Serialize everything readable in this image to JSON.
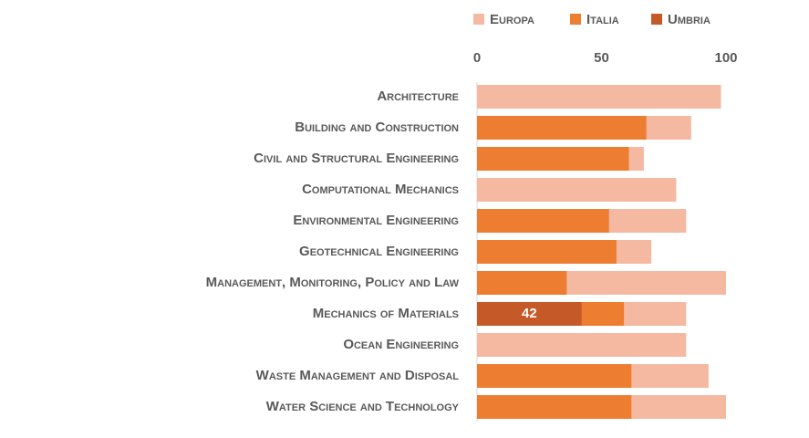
{
  "chart_data": {
    "type": "overlapping-bar",
    "categories": [
      "Architecture",
      "Building and Construction",
      "Civil and Structural Engineering",
      "Computational Mechanics",
      "Environmental Engineering",
      "Geotechnical Engineering",
      "Management, Monitoring, Policy and Law",
      "Mechanics of Materials",
      "Ocean Engineering",
      "Waste Management and Disposal",
      "Water Science and Technology"
    ],
    "series": [
      {
        "name": "Europa",
        "color": "#f4b9a0",
        "values": [
          98,
          86,
          67,
          80,
          84,
          70,
          100,
          84,
          84,
          93,
          100
        ]
      },
      {
        "name": "Italia",
        "color": "#ed7d31",
        "values": [
          null,
          68,
          61,
          null,
          53,
          56,
          36,
          59,
          null,
          62,
          62
        ]
      },
      {
        "name": "Umbria",
        "color": "#c55a28",
        "values": [
          null,
          null,
          null,
          null,
          null,
          null,
          null,
          42,
          null,
          null,
          null
        ],
        "show_labels": true
      }
    ],
    "xlim": [
      0,
      100
    ],
    "xticks": [
      0,
      50,
      100
    ],
    "grid": false,
    "legend": "top"
  }
}
